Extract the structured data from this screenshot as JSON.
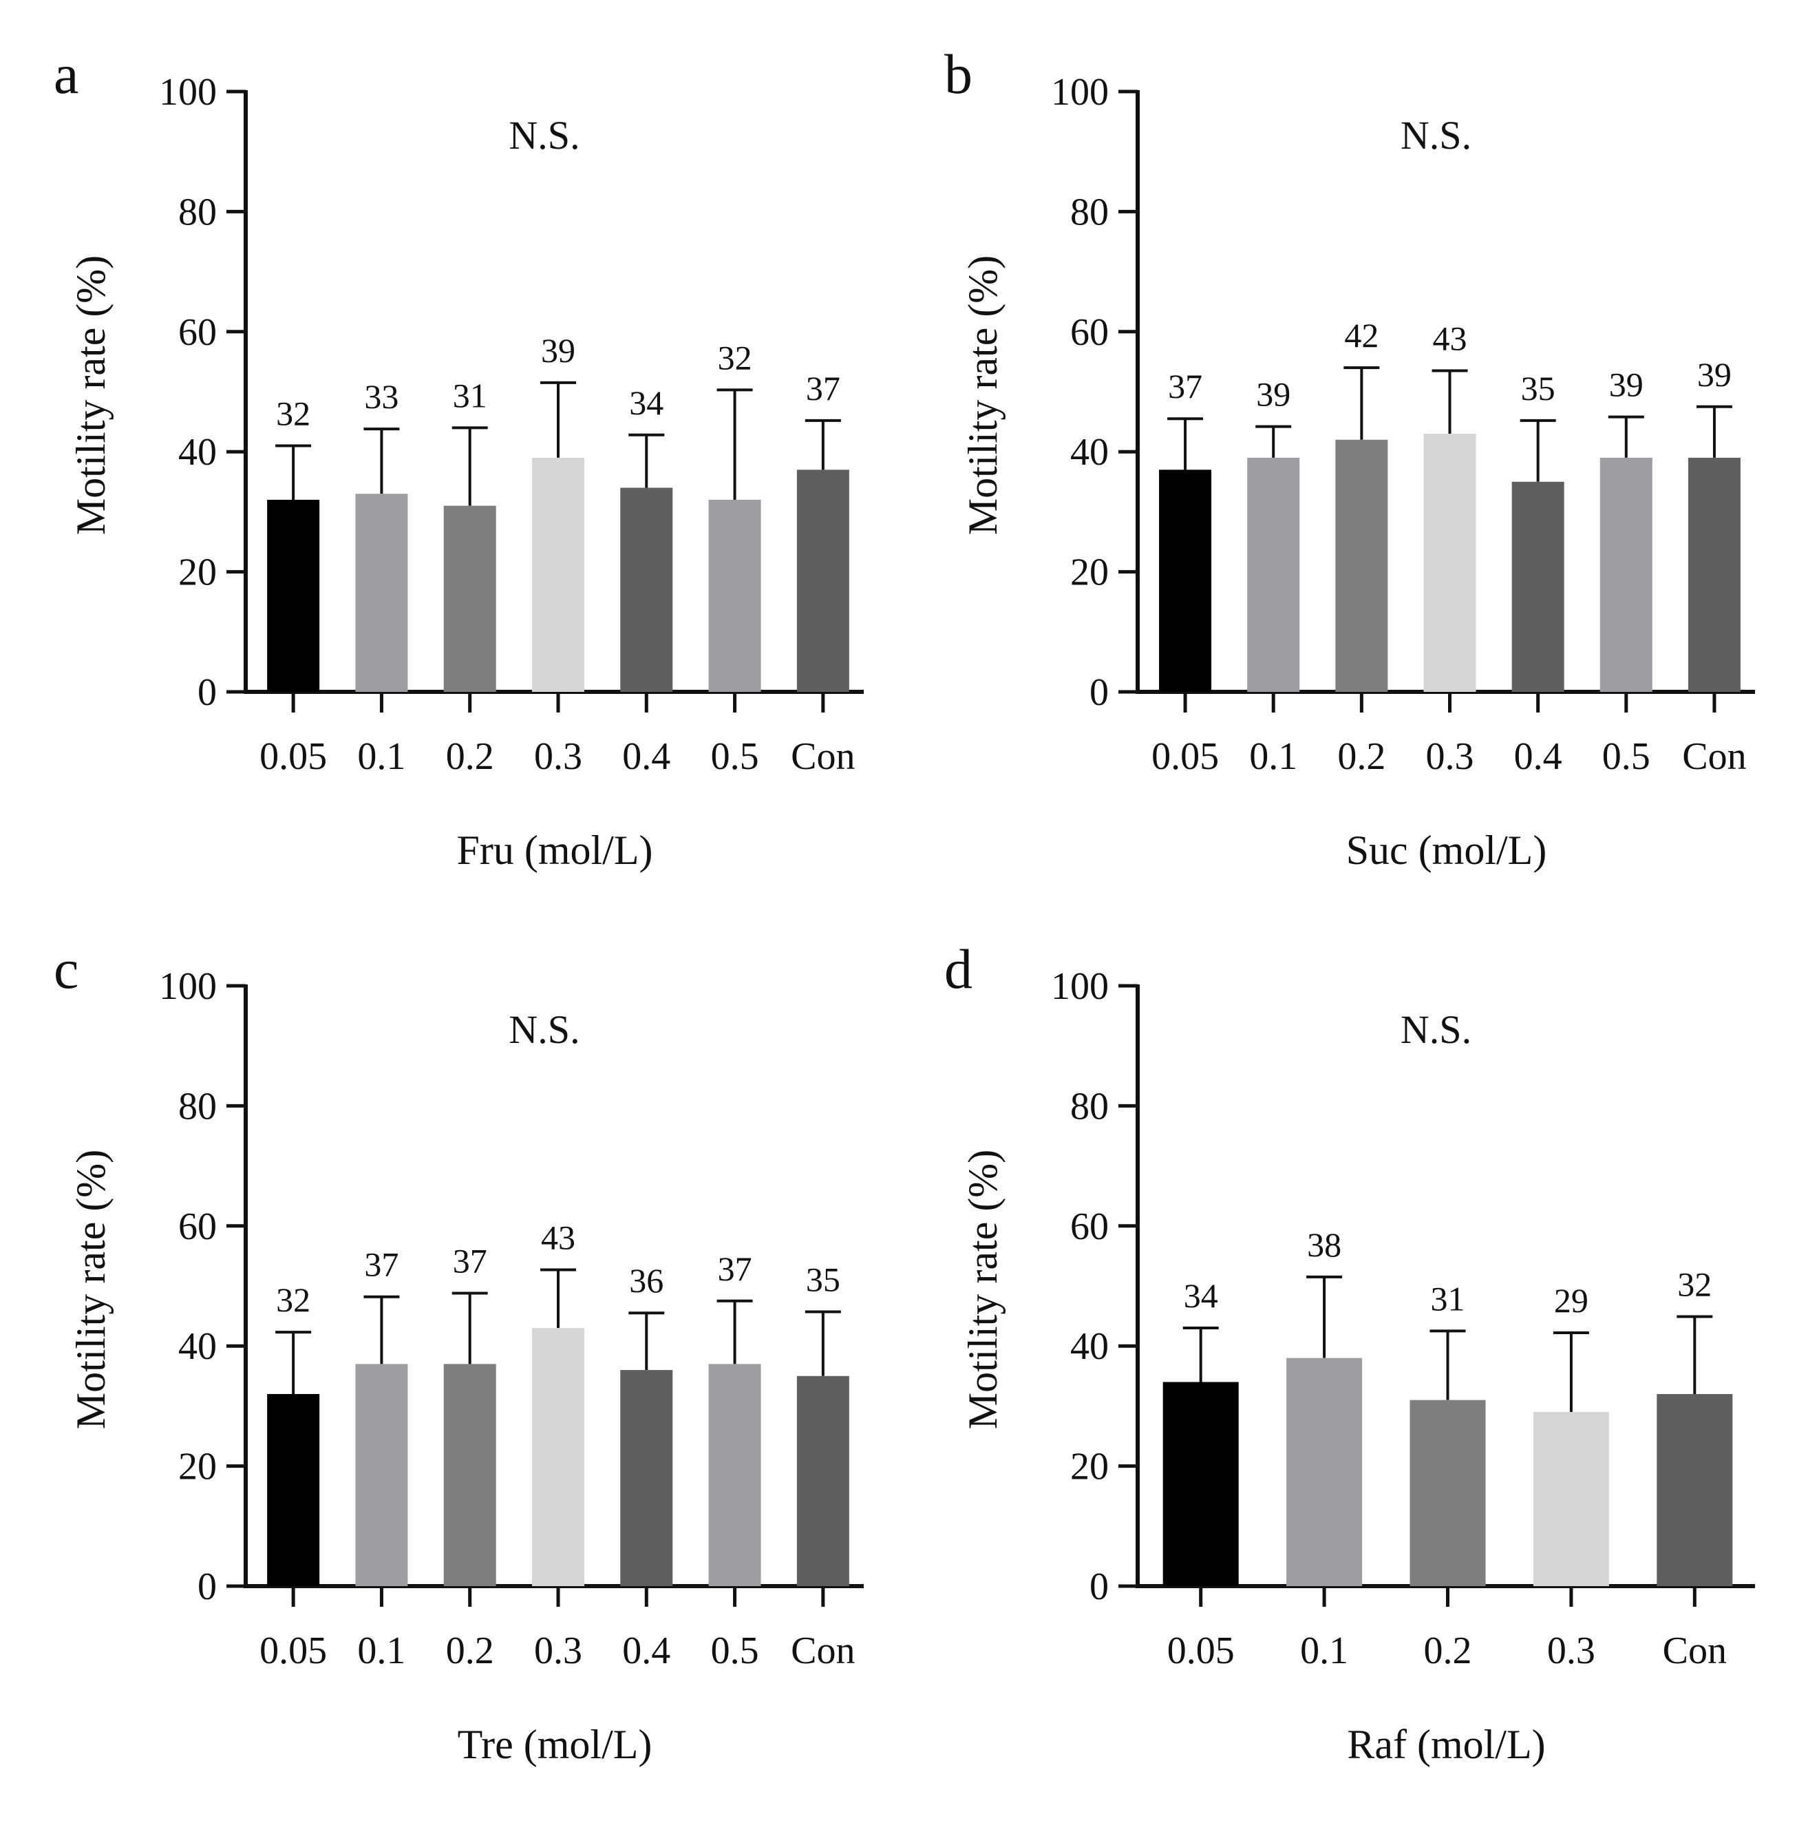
{
  "figure": {
    "yticks": [
      "0",
      "20",
      "40",
      "60",
      "80",
      "100"
    ],
    "colors": {
      "axis": "#111111",
      "text": "#111111",
      "bar_palette": [
        "#000000",
        "#9e9da2",
        "#7e7e7e",
        "#d6d6d6",
        "#5f5f5f",
        "#9e9da2",
        "#5f5f5f"
      ],
      "bar_palette_5": [
        "#000000",
        "#9e9da2",
        "#7e7e7e",
        "#d6d6d6",
        "#5f5f5f"
      ]
    }
  },
  "chart_data": [
    {
      "panel": "a",
      "type": "bar",
      "title": "",
      "significance": "N.S.",
      "xlabel": "Fru (mol/L)",
      "ylabel": "Motility rate (%)",
      "ylim": [
        0,
        100
      ],
      "categories": [
        "0.05",
        "0.1",
        "0.2",
        "0.3",
        "0.4",
        "0.5",
        "Con"
      ],
      "values": [
        32,
        33,
        31,
        39,
        34,
        32,
        37
      ],
      "error_upper": [
        41,
        43.8,
        44,
        51.5,
        42.8,
        50.3,
        45.2
      ],
      "labels": [
        "32",
        "33",
        "31",
        "39",
        "34",
        "32",
        "37"
      ]
    },
    {
      "panel": "b",
      "type": "bar",
      "title": "",
      "significance": "N.S.",
      "xlabel": "Suc (mol/L)",
      "ylabel": "Motility rate (%)",
      "ylim": [
        0,
        100
      ],
      "categories": [
        "0.05",
        "0.1",
        "0.2",
        "0.3",
        "0.4",
        "0.5",
        "Con"
      ],
      "values": [
        37,
        39,
        42,
        43,
        35,
        39,
        39
      ],
      "error_upper": [
        45.5,
        44.2,
        54,
        53.5,
        45.2,
        45.8,
        47.5
      ],
      "labels": [
        "37",
        "39",
        "42",
        "43",
        "35",
        "39",
        "39"
      ]
    },
    {
      "panel": "c",
      "type": "bar",
      "title": "",
      "significance": "N.S.",
      "xlabel": "Tre (mol/L)",
      "ylabel": "Motility rate (%)",
      "ylim": [
        0,
        100
      ],
      "categories": [
        "0.05",
        "0.1",
        "0.2",
        "0.3",
        "0.4",
        "0.5",
        "Con"
      ],
      "values": [
        32,
        37,
        37,
        43,
        36,
        37,
        35
      ],
      "error_upper": [
        42.3,
        48.2,
        48.8,
        52.7,
        45.5,
        47.5,
        45.7
      ],
      "labels": [
        "32",
        "37",
        "37",
        "43",
        "36",
        "37",
        "35"
      ]
    },
    {
      "panel": "d",
      "type": "bar",
      "title": "",
      "significance": "N.S.",
      "xlabel": "Raf (mol/L)",
      "ylabel": "Motility rate (%)",
      "ylim": [
        0,
        100
      ],
      "categories": [
        "0.05",
        "0.1",
        "0.2",
        "0.3",
        "Con"
      ],
      "values": [
        34,
        38,
        31,
        29,
        32
      ],
      "error_upper": [
        43,
        51.5,
        42.5,
        42.2,
        44.9
      ],
      "labels": [
        "34",
        "38",
        "31",
        "29",
        "32"
      ]
    }
  ]
}
